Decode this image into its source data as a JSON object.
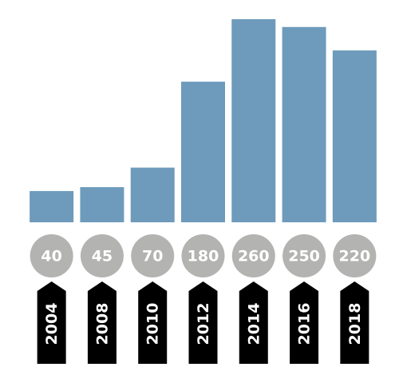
{
  "chart_data": {
    "type": "bar",
    "categories": [
      "2004",
      "2008",
      "2010",
      "2012",
      "2014",
      "2016",
      "2018"
    ],
    "values": [
      40,
      45,
      70,
      180,
      260,
      250,
      220
    ],
    "color": "#6e9bbb"
  }
}
